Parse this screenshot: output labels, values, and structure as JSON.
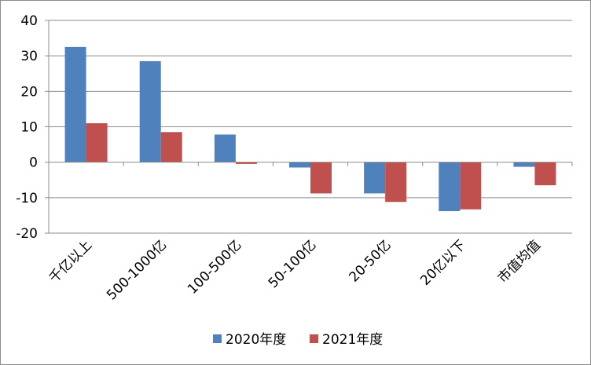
{
  "chart_data": {
    "type": "bar",
    "categories": [
      "千亿以上",
      "500-1000亿",
      "100-500亿",
      "50-100亿",
      "20-50亿",
      "20亿以下",
      "市值均值"
    ],
    "series": [
      {
        "name": "2020年度",
        "color": "#4f81bd",
        "values": [
          32.5,
          28.5,
          7.8,
          -1.5,
          -8.8,
          -13.8,
          -1.3
        ]
      },
      {
        "name": "2021年度",
        "color": "#c0504d",
        "values": [
          11.0,
          8.5,
          -0.5,
          -8.8,
          -11.2,
          -13.3,
          -6.5
        ]
      }
    ],
    "ylim": [
      -20,
      40
    ],
    "yticks": [
      -20,
      -10,
      0,
      10,
      20,
      30,
      40
    ],
    "grid": true,
    "legend": "bottom",
    "title": "",
    "xlabel": "",
    "ylabel": ""
  }
}
